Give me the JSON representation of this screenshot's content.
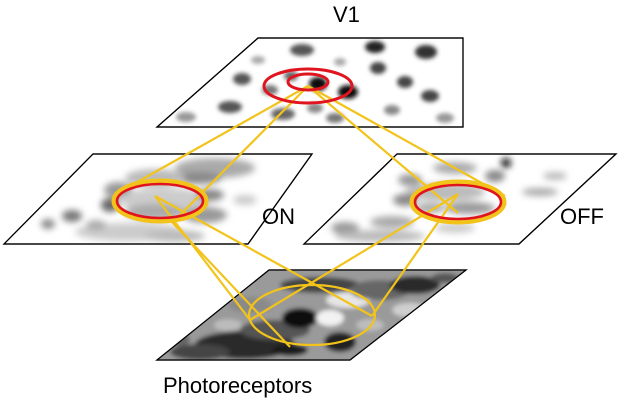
{
  "labels": {
    "v1": "V1",
    "on": "ON",
    "off": "OFF",
    "photoreceptors": "Photoreceptors"
  },
  "colors": {
    "outline": "#000000",
    "connection": "#f2c31a",
    "receptive_field": "#e0141e",
    "background": "#ffffff"
  }
}
